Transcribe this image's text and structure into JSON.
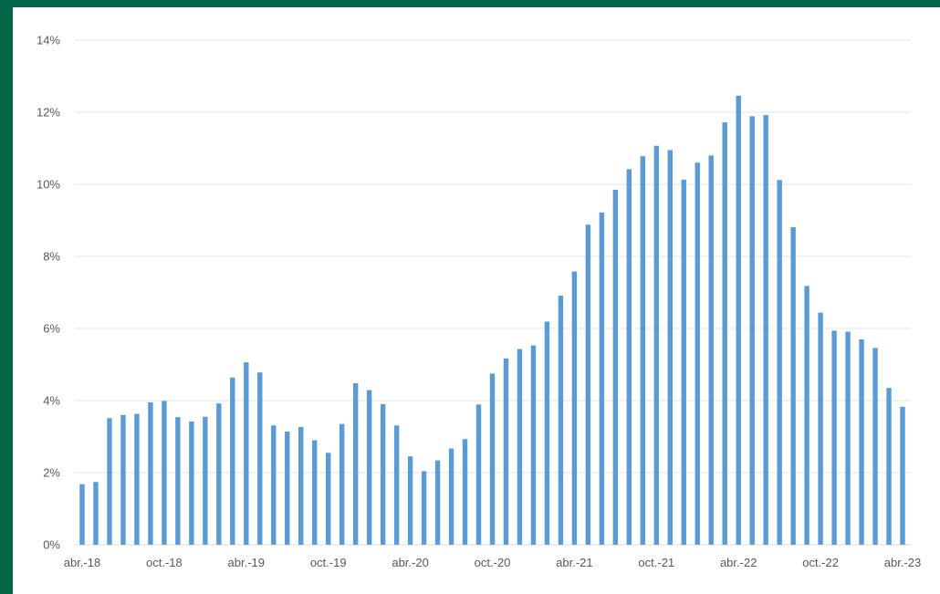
{
  "chart_data": {
    "type": "bar",
    "title": "",
    "xlabel": "",
    "ylabel": "",
    "ylim": [
      0,
      14
    ],
    "grid": true,
    "y_tick_labels": [
      "0%",
      "2%",
      "4%",
      "6%",
      "8%",
      "10%",
      "12%",
      "14%"
    ],
    "x_tick_labels": [
      "abr.-18",
      "oct.-18",
      "abr.-19",
      "oct.-19",
      "abr.-20",
      "oct.-20",
      "abr.-21",
      "oct.-21",
      "abr.-22",
      "oct.-22",
      "abr.-23"
    ],
    "categories": [
      "abr.-18",
      "may.-18",
      "jun.-18",
      "jul.-18",
      "ago.-18",
      "sep.-18",
      "oct.-18",
      "nov.-18",
      "dic.-18",
      "ene.-19",
      "feb.-19",
      "mar.-19",
      "abr.-19",
      "may.-19",
      "jun.-19",
      "jul.-19",
      "ago.-19",
      "sep.-19",
      "oct.-19",
      "nov.-19",
      "dic.-19",
      "ene.-20",
      "feb.-20",
      "mar.-20",
      "abr.-20",
      "may.-20",
      "jun.-20",
      "jul.-20",
      "ago.-20",
      "sep.-20",
      "oct.-20",
      "nov.-20",
      "dic.-20",
      "ene.-21",
      "feb.-21",
      "mar.-21",
      "abr.-21",
      "may.-21",
      "jun.-21",
      "jul.-21",
      "ago.-21",
      "sep.-21",
      "oct.-21",
      "nov.-21",
      "dic.-21",
      "ene.-22",
      "feb.-22",
      "mar.-22",
      "abr.-22",
      "may.-22",
      "jun.-22",
      "jul.-22",
      "ago.-22",
      "sep.-22",
      "oct.-22",
      "nov.-22",
      "dic.-22",
      "ene.-23",
      "feb.-23",
      "mar.-23",
      "abr.-23"
    ],
    "values": [
      1.68,
      1.74,
      3.51,
      3.6,
      3.63,
      3.95,
      3.99,
      3.54,
      3.42,
      3.55,
      3.92,
      4.64,
      5.06,
      4.78,
      3.31,
      3.14,
      3.27,
      2.9,
      2.55,
      3.35,
      4.48,
      4.29,
      3.9,
      3.31,
      2.45,
      2.04,
      2.34,
      2.67,
      2.93,
      3.89,
      4.75,
      5.17,
      5.43,
      5.53,
      6.19,
      6.91,
      7.58,
      8.88,
      9.22,
      9.85,
      10.42,
      10.78,
      11.07,
      10.95,
      10.13,
      10.6,
      10.8,
      11.72,
      12.46,
      11.89,
      11.92,
      10.12,
      8.81,
      7.18,
      6.44,
      5.94,
      5.91,
      5.7,
      5.46,
      4.35,
      3.83
    ],
    "bar_color": "#5B9BD5",
    "grid_color": "#E6E6E6",
    "frame_color": "#006647"
  }
}
